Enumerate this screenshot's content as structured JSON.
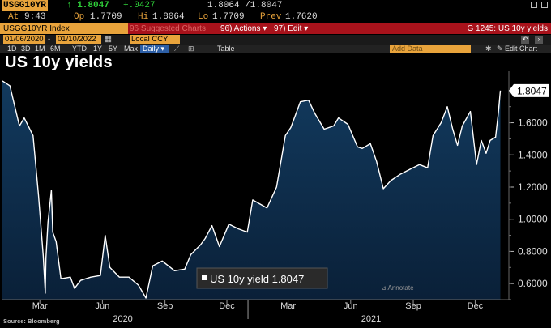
{
  "quote": {
    "ticker": "USGG10YR",
    "last": "↑ 1.8047",
    "change": "+.0427",
    "bid_ask": "1.8064 /1.8047"
  },
  "stats": {
    "at_label": "At",
    "at": "9:43",
    "op_label": "Op",
    "op": "1.7709",
    "hi_label": "Hi",
    "hi": "1.8064",
    "lo_label": "Lo",
    "lo": "1.7709",
    "prev_label": "Prev",
    "prev": "1.7620"
  },
  "command_bar": {
    "security": "USGG10YR Index",
    "related": "96 Suggested Charts",
    "actions": "96) Actions ▾",
    "edit": "97) Edit ▾",
    "title": "G 1245: US 10y yields"
  },
  "inputs": {
    "start_date": "01/06/2020",
    "end_date": "01/10/2022",
    "currency": "Local CCY"
  },
  "toolbar": {
    "periods": [
      "1D",
      "3D",
      "1M",
      "6M",
      "YTD",
      "1Y",
      "5Y",
      "Max"
    ],
    "frequency": "Daily ▾",
    "table": "Table",
    "add_data": "Add Data",
    "edit_chart": "✎ Edit Chart"
  },
  "heading": "US 10y yields",
  "source": "Source: Bloomberg",
  "colors": {
    "accent": "#e8a33b",
    "bar_red": "#a8121b",
    "fill": "#0c2a48",
    "line": "#ffffff",
    "up": "#2fd13a"
  },
  "chart_data": {
    "type": "area",
    "x_start": "2020-01-06",
    "x_end": "2022-01-10",
    "x_ticks": [
      {
        "date": "2020-03-01",
        "label": "Mar"
      },
      {
        "date": "2020-06-01",
        "label": "Jun"
      },
      {
        "date": "2020-09-01",
        "label": "Sep"
      },
      {
        "date": "2020-12-01",
        "label": "Dec"
      },
      {
        "date": "2021-03-01",
        "label": "Mar"
      },
      {
        "date": "2021-06-01",
        "label": "Jun"
      },
      {
        "date": "2021-09-01",
        "label": "Sep"
      },
      {
        "date": "2021-12-01",
        "label": "Dec"
      }
    ],
    "year_labels": [
      {
        "date": "2020-07-01",
        "label": "2020"
      },
      {
        "date": "2021-07-01",
        "label": "2021"
      }
    ],
    "ylim": [
      0.5,
      1.92
    ],
    "y_ticks": [
      0.6,
      0.8,
      1.0,
      1.2,
      1.4,
      1.6
    ],
    "y_tick_labels": [
      "0.6000",
      "0.8000",
      "1.0000",
      "1.2000",
      "1.4000",
      "1.6000"
    ],
    "last_value_label": "1.8047",
    "legend_label": "US 10y yield 1.8047",
    "annotate_label": "Annotate",
    "series": [
      {
        "x": [
          "2020-01-06",
          "2020-01-17",
          "2020-01-31",
          "2020-02-07",
          "2020-02-20",
          "2020-02-28",
          "2020-03-06",
          "2020-03-09",
          "2020-03-10",
          "2020-03-13",
          "2020-03-18",
          "2020-03-20",
          "2020-03-25",
          "2020-04-01",
          "2020-04-15",
          "2020-04-21",
          "2020-04-30",
          "2020-05-15",
          "2020-05-29",
          "2020-06-05",
          "2020-06-12",
          "2020-06-26",
          "2020-07-10",
          "2020-07-24",
          "2020-08-04",
          "2020-08-14",
          "2020-08-28",
          "2020-09-15",
          "2020-09-30",
          "2020-10-09",
          "2020-10-23",
          "2020-10-30",
          "2020-11-09",
          "2020-11-20",
          "2020-12-04",
          "2020-12-18",
          "2020-12-31",
          "2021-01-08",
          "2021-01-29",
          "2021-02-12",
          "2021-02-25",
          "2021-03-05",
          "2021-03-19",
          "2021-03-31",
          "2021-04-09",
          "2021-04-23",
          "2021-05-07",
          "2021-05-14",
          "2021-05-28",
          "2021-06-11",
          "2021-06-18",
          "2021-06-30",
          "2021-07-09",
          "2021-07-19",
          "2021-07-30",
          "2021-08-13",
          "2021-08-27",
          "2021-09-10",
          "2021-09-22",
          "2021-09-30",
          "2021-10-12",
          "2021-10-21",
          "2021-10-29",
          "2021-11-05",
          "2021-11-12",
          "2021-11-24",
          "2021-12-03",
          "2021-12-10",
          "2021-12-17",
          "2021-12-23",
          "2021-12-31",
          "2022-01-04",
          "2022-01-07"
        ],
        "y": [
          1.86,
          1.83,
          1.58,
          1.63,
          1.52,
          1.15,
          0.77,
          0.54,
          0.76,
          0.98,
          1.18,
          0.92,
          0.86,
          0.63,
          0.64,
          0.57,
          0.62,
          0.64,
          0.65,
          0.9,
          0.7,
          0.64,
          0.64,
          0.59,
          0.51,
          0.71,
          0.74,
          0.68,
          0.69,
          0.78,
          0.84,
          0.88,
          0.96,
          0.83,
          0.97,
          0.94,
          0.92,
          1.12,
          1.07,
          1.2,
          1.52,
          1.57,
          1.73,
          1.74,
          1.66,
          1.56,
          1.58,
          1.63,
          1.59,
          1.45,
          1.44,
          1.47,
          1.36,
          1.19,
          1.24,
          1.28,
          1.31,
          1.34,
          1.32,
          1.52,
          1.6,
          1.7,
          1.56,
          1.46,
          1.58,
          1.67,
          1.34,
          1.49,
          1.41,
          1.49,
          1.51,
          1.66,
          1.8
        ]
      }
    ]
  }
}
